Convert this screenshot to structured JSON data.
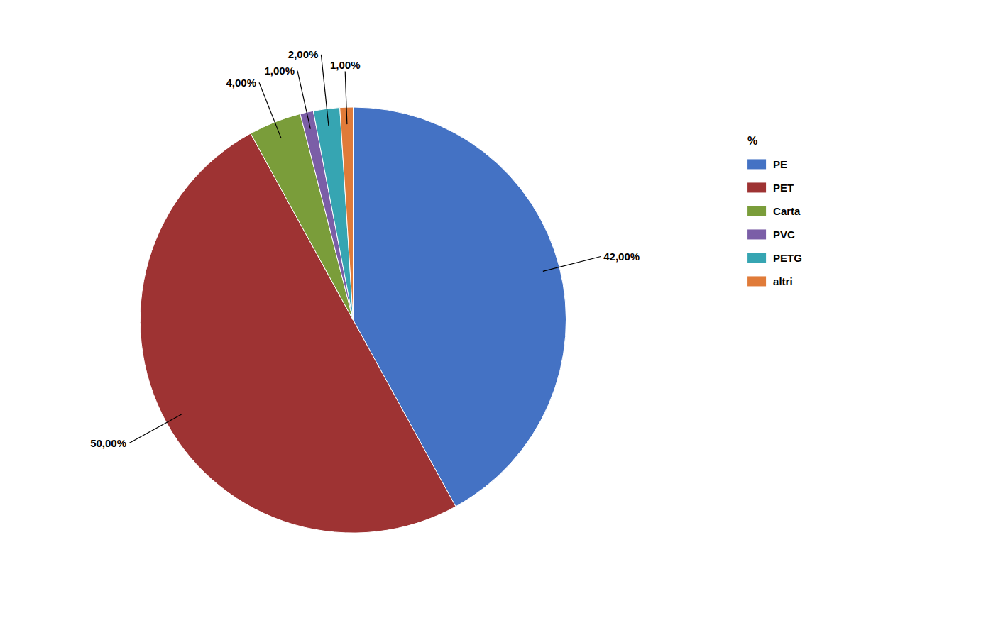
{
  "chart_data": {
    "type": "pie",
    "categories": [
      "PE",
      "PET",
      "Carta",
      "PVC",
      "PETG",
      "altri"
    ],
    "values": [
      42,
      50,
      4,
      1,
      2,
      1
    ],
    "value_labels": [
      "42,00%",
      "50,00%",
      "4,00%",
      "1,00%",
      "2,00%",
      "1,00%"
    ],
    "colors": [
      "#4472C4",
      "#9E3333",
      "#7A9D3A",
      "#7B5EA7",
      "#36A5B2",
      "#E07B39"
    ],
    "data_labels": true,
    "legend": "right",
    "legend_title": "%"
  }
}
